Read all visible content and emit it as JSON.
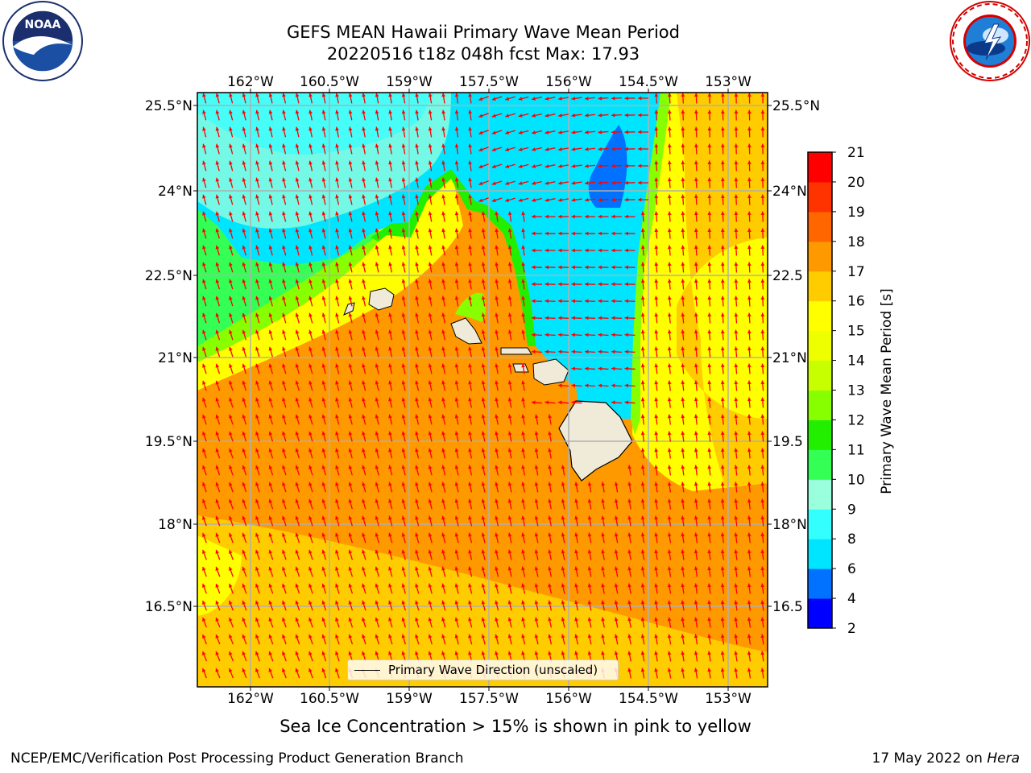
{
  "header": {
    "title_line1": "GEFS MEAN Hawaii Primary Wave Mean Period",
    "title_line2": "20220516 t18z 048h fcst   Max: 17.93"
  },
  "logos": {
    "noaa": {
      "icon": "noaa-logo",
      "text": "NOAA",
      "ring_text": "NATIONAL OCEANIC AND ATMOSPHERIC ADMINISTRATION · U.S. DEPARTMENT OF COMMERCE"
    },
    "nws": {
      "icon": "nws-logo",
      "ring_text": "NATIONAL WEATHER SERVICE"
    }
  },
  "map": {
    "lon_ticks": [
      "162°W",
      "160.5°W",
      "159°W",
      "157.5°W",
      "156°W",
      "154.5°W",
      "153°W"
    ],
    "lat_ticks": [
      "25.5°N",
      "24°N",
      "22.5°N",
      "21°N",
      "19.5°N",
      "18°N",
      "16.5°N"
    ],
    "lat_ticks_right": [
      "25.5°N",
      "24°N",
      "22.5",
      "21°N",
      "19.5",
      "18°N",
      "16.5"
    ],
    "legend_label": "Primary Wave Direction (unscaled)",
    "arrow_color": "#ff0000"
  },
  "colorbar": {
    "label": "Primary Wave Mean Period [s]",
    "ticks": [
      "2",
      "4",
      "6",
      "8",
      "9",
      "10",
      "11",
      "12",
      "13",
      "14",
      "15",
      "16",
      "17",
      "18",
      "19",
      "20",
      "21"
    ],
    "colors": [
      "#0000ff",
      "#0072ff",
      "#00e5ff",
      "#33ffff",
      "#99ffdd",
      "#33ff55",
      "#22ee00",
      "#88ff00",
      "#c8ff00",
      "#eeff00",
      "#ffff00",
      "#ffcc00",
      "#ff9900",
      "#ff6600",
      "#ff3300",
      "#ff0000"
    ]
  },
  "chart_data": {
    "type": "heatmap",
    "title": "GEFS MEAN Hawaii Primary Wave Mean Period",
    "subtitle": "20220516 t18z 048h fcst   Max: 17.93",
    "x_ticks": [
      "162°W",
      "160.5°W",
      "159°W",
      "157.5°W",
      "156°W",
      "154.5°W",
      "153°W"
    ],
    "y_ticks": [
      "25.5°N",
      "24°N",
      "22.5°N",
      "21°N",
      "19.5°N",
      "18°N",
      "16.5°N"
    ],
    "colorbar_label": "Primary Wave Mean Period [s]",
    "colorbar_range": [
      2,
      21
    ],
    "max_value": 17.93,
    "grid": true,
    "legend": {
      "label": "Primary Wave Direction (unscaled)",
      "position": "bottom-center"
    }
  },
  "footer": {
    "note": "Sea Ice Concentration > 15% is shown in pink to yellow",
    "left": "NCEP/EMC/Verification Post Processing Product Generation Branch",
    "right_prefix": "17 May 2022 on ",
    "right_host": "Hera"
  }
}
